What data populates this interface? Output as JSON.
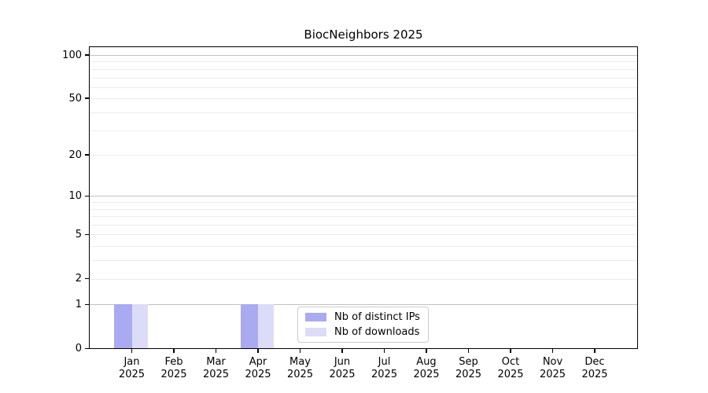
{
  "chart_data": {
    "type": "bar",
    "title": "BiocNeighbors 2025",
    "year": "2025",
    "months": [
      "Jan",
      "Feb",
      "Mar",
      "Apr",
      "May",
      "Jun",
      "Jul",
      "Aug",
      "Sep",
      "Oct",
      "Nov",
      "Dec"
    ],
    "categories": [
      "Jan 2025",
      "Feb 2025",
      "Mar 2025",
      "Apr 2025",
      "May 2025",
      "Jun 2025",
      "Jul 2025",
      "Aug 2025",
      "Sep 2025",
      "Oct 2025",
      "Nov 2025",
      "Dec 2025"
    ],
    "series": [
      {
        "name": "Nb of distinct IPs",
        "color": "#aaaaf0",
        "values": [
          1,
          0,
          0,
          1,
          0,
          0,
          0,
          0,
          0,
          0,
          0,
          0
        ]
      },
      {
        "name": "Nb of downloads",
        "color": "#dcdcf8",
        "values": [
          1,
          0,
          0,
          1,
          0,
          0,
          0,
          0,
          0,
          0,
          0,
          0
        ]
      }
    ],
    "y_scale": "log1p",
    "ylim": [
      0,
      100
    ],
    "y_tick_labels": [
      0,
      1,
      2,
      5,
      10,
      20,
      50,
      100
    ],
    "y_gridlines_major": [
      1,
      10,
      100
    ],
    "y_gridlines_minor": [
      2,
      3,
      4,
      5,
      6,
      7,
      8,
      9,
      20,
      30,
      40,
      50,
      60,
      70,
      80,
      90
    ],
    "grid": true,
    "legend_position": "bottom-center",
    "colors": {
      "major_gridline": "#c2c2c2",
      "minor_gridline": "#ececec",
      "axis": "#000000",
      "text": "#000000",
      "background": "#ffffff"
    }
  }
}
